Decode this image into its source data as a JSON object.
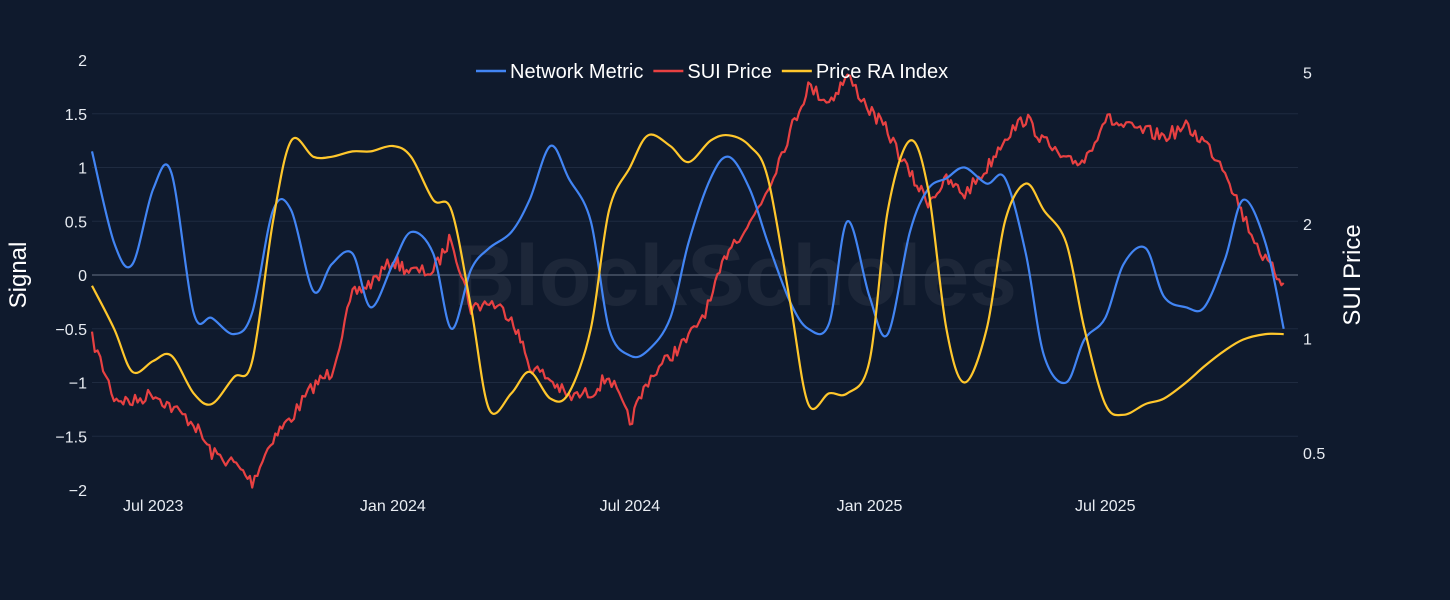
{
  "chart_data": {
    "type": "line",
    "title": "",
    "watermark": "BlockScholes",
    "x_ticks": [
      "Jul 2023",
      "Jan 2024",
      "Jul 2024",
      "Jan 2025",
      "Jul 2025"
    ],
    "y_left": {
      "label": "Signal",
      "range": [
        -2,
        2
      ],
      "ticks": [
        "2",
        "1.5",
        "1",
        "0.5",
        "0",
        "−0.5",
        "−1",
        "−1.5",
        "−2"
      ]
    },
    "y_right": {
      "label": "SUI Price",
      "scale": "log",
      "range": [
        0.4,
        5.4
      ],
      "ticks": [
        "5",
        "2",
        "1",
        "0.5"
      ],
      "tick_values": [
        5,
        2,
        1,
        0.5
      ]
    },
    "legend": {
      "placement": "top-center",
      "entries": [
        "Network Metric",
        "SUI Price",
        "Price RA Index"
      ]
    },
    "series": [
      {
        "name": "Network Metric",
        "axis": "left",
        "color": "#4285f4",
        "x": [
          "2023-05-15",
          "2023-06-01",
          "2023-06-15",
          "2023-07-01",
          "2023-07-15",
          "2023-08-01",
          "2023-08-15",
          "2023-09-01",
          "2023-09-15",
          "2023-10-01",
          "2023-10-15",
          "2023-11-01",
          "2023-11-15",
          "2023-12-01",
          "2023-12-15",
          "2024-01-01",
          "2024-01-15",
          "2024-02-01",
          "2024-02-15",
          "2024-03-01",
          "2024-03-15",
          "2024-04-01",
          "2024-04-15",
          "2024-05-01",
          "2024-05-15",
          "2024-06-01",
          "2024-06-15",
          "2024-07-01",
          "2024-07-15",
          "2024-08-01",
          "2024-08-15",
          "2024-09-01",
          "2024-09-15",
          "2024-10-01",
          "2024-10-15",
          "2024-11-01",
          "2024-11-15",
          "2024-12-01",
          "2024-12-15",
          "2025-01-01",
          "2025-01-15",
          "2025-02-01",
          "2025-02-15",
          "2025-03-01",
          "2025-03-15",
          "2025-04-01",
          "2025-04-15",
          "2025-05-01",
          "2025-05-15",
          "2025-06-01",
          "2025-06-15",
          "2025-07-01",
          "2025-07-15",
          "2025-08-01",
          "2025-08-15",
          "2025-09-01",
          "2025-09-15",
          "2025-10-01",
          "2025-10-15",
          "2025-11-01",
          "2025-11-15"
        ],
        "values": [
          1.15,
          0.3,
          0.1,
          0.8,
          0.95,
          -0.35,
          -0.4,
          -0.55,
          -0.35,
          0.6,
          0.6,
          -0.15,
          0.1,
          0.2,
          -0.3,
          0.1,
          0.4,
          0.2,
          -0.5,
          0.05,
          0.25,
          0.4,
          0.7,
          1.2,
          0.9,
          0.5,
          -0.5,
          -0.75,
          -0.7,
          -0.4,
          0.3,
          0.9,
          1.1,
          0.8,
          0.3,
          -0.25,
          -0.5,
          -0.45,
          0.5,
          -0.2,
          -0.55,
          0.4,
          0.8,
          0.9,
          1.0,
          0.85,
          0.9,
          0.2,
          -0.75,
          -1.0,
          -0.6,
          -0.4,
          0.1,
          0.25,
          -0.2,
          -0.3,
          -0.3,
          0.15,
          0.7,
          0.3,
          -0.5
        ]
      },
      {
        "name": "SUI Price",
        "axis": "right",
        "color": "#e84142",
        "x": [
          "2023-05-15",
          "2023-06-01",
          "2023-06-15",
          "2023-07-01",
          "2023-07-15",
          "2023-08-01",
          "2023-08-15",
          "2023-09-01",
          "2023-09-15",
          "2023-10-01",
          "2023-10-15",
          "2023-11-01",
          "2023-11-15",
          "2023-12-01",
          "2023-12-15",
          "2024-01-01",
          "2024-01-15",
          "2024-02-01",
          "2024-02-15",
          "2024-03-01",
          "2024-03-15",
          "2024-04-01",
          "2024-04-15",
          "2024-05-01",
          "2024-05-15",
          "2024-06-01",
          "2024-06-15",
          "2024-07-01",
          "2024-07-15",
          "2024-08-01",
          "2024-08-15",
          "2024-09-01",
          "2024-09-15",
          "2024-10-01",
          "2024-10-15",
          "2024-11-01",
          "2024-11-15",
          "2024-12-01",
          "2024-12-15",
          "2025-01-01",
          "2025-01-15",
          "2025-02-01",
          "2025-02-15",
          "2025-03-01",
          "2025-03-15",
          "2025-04-01",
          "2025-04-15",
          "2025-05-01",
          "2025-05-15",
          "2025-06-01",
          "2025-06-15",
          "2025-07-01",
          "2025-07-15",
          "2025-08-01",
          "2025-08-15",
          "2025-09-01",
          "2025-09-15",
          "2025-10-01",
          "2025-10-15",
          "2025-11-01",
          "2025-11-15"
        ],
        "values": [
          1.0,
          0.7,
          0.68,
          0.72,
          0.66,
          0.6,
          0.5,
          0.47,
          0.42,
          0.55,
          0.62,
          0.75,
          0.82,
          1.3,
          1.4,
          1.6,
          1.5,
          1.5,
          1.85,
          1.2,
          1.25,
          1.15,
          0.85,
          0.78,
          0.7,
          0.72,
          0.8,
          0.6,
          0.78,
          0.9,
          1.0,
          1.25,
          1.75,
          2.0,
          2.5,
          3.5,
          4.6,
          4.2,
          4.9,
          4.0,
          3.5,
          2.7,
          2.3,
          2.6,
          2.4,
          2.8,
          3.4,
          3.8,
          3.3,
          2.9,
          2.95,
          3.8,
          3.6,
          3.5,
          3.4,
          3.6,
          3.3,
          2.8,
          2.1,
          1.6,
          1.4
        ]
      },
      {
        "name": "Price RA Index",
        "axis": "left",
        "color": "#ffc72c",
        "x": [
          "2023-05-15",
          "2023-06-01",
          "2023-06-15",
          "2023-07-01",
          "2023-07-15",
          "2023-08-01",
          "2023-08-15",
          "2023-09-01",
          "2023-09-15",
          "2023-10-01",
          "2023-10-15",
          "2023-11-01",
          "2023-11-15",
          "2023-12-01",
          "2023-12-15",
          "2024-01-01",
          "2024-01-15",
          "2024-02-01",
          "2024-02-15",
          "2024-03-01",
          "2024-03-15",
          "2024-04-01",
          "2024-04-15",
          "2024-05-01",
          "2024-05-15",
          "2024-06-01",
          "2024-06-15",
          "2024-07-01",
          "2024-07-15",
          "2024-08-01",
          "2024-08-15",
          "2024-09-01",
          "2024-09-15",
          "2024-10-01",
          "2024-10-15",
          "2024-11-01",
          "2024-11-15",
          "2024-12-01",
          "2024-12-15",
          "2025-01-01",
          "2025-01-15",
          "2025-02-01",
          "2025-02-15",
          "2025-03-01",
          "2025-03-15",
          "2025-04-01",
          "2025-04-15",
          "2025-05-01",
          "2025-05-15",
          "2025-06-01",
          "2025-06-15",
          "2025-07-01",
          "2025-07-15",
          "2025-08-01",
          "2025-08-15",
          "2025-09-01",
          "2025-09-15",
          "2025-10-01",
          "2025-10-15",
          "2025-11-01",
          "2025-11-15"
        ],
        "values": [
          -0.1,
          -0.5,
          -0.9,
          -0.8,
          -0.75,
          -1.1,
          -1.2,
          -0.95,
          -0.8,
          0.5,
          1.25,
          1.1,
          1.1,
          1.15,
          1.15,
          1.2,
          1.1,
          0.7,
          0.6,
          -0.3,
          -1.25,
          -1.1,
          -0.9,
          -1.15,
          -1.1,
          -0.5,
          0.6,
          1.0,
          1.3,
          1.2,
          1.05,
          1.25,
          1.3,
          1.2,
          0.9,
          -0.25,
          -1.2,
          -1.1,
          -1.1,
          -0.8,
          0.6,
          1.25,
          0.8,
          -0.5,
          -1.0,
          -0.5,
          0.5,
          0.85,
          0.6,
          0.3,
          -0.5,
          -1.2,
          -1.3,
          -1.2,
          -1.15,
          -1.0,
          -0.85,
          -0.7,
          -0.6,
          -0.55,
          -0.55
        ]
      }
    ]
  }
}
